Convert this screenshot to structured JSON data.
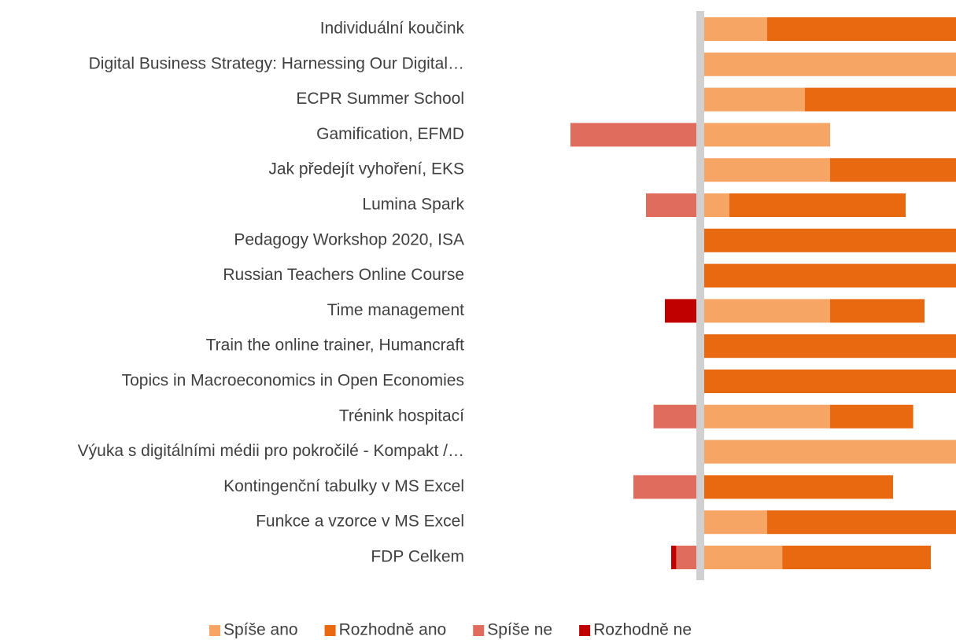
{
  "chart_data": {
    "type": "diverging-bar",
    "categories": [
      "Individuální koučink",
      "Digital Business Strategy: Harnessing Our Digital…",
      "ECPR Summer School",
      "Gamification,  EFMD",
      "Jak předejít vyhoření, EKS",
      "Lumina Spark",
      "Pedagogy Workshop 2020, ISA",
      "Russian Teachers Online Course",
      "Time management",
      "Train the online trainer, Humancraft",
      "Topics in Macroeconomics in Open Economies",
      "Trénink hospitací",
      "Výuka s digitálními médii pro pokročilé - Kompakt /…",
      "Kontingenční tabulky v MS Excel ",
      "Funkce a vzorce v MS Excel",
      "FDP Celkem"
    ],
    "series": [
      {
        "name": "Spíše ano",
        "color": "#f7a565",
        "values": [
          25,
          100,
          40,
          50,
          50,
          10,
          null,
          null,
          50,
          null,
          null,
          50,
          100,
          null,
          25,
          31
        ]
      },
      {
        "name": "Rozhodně ano",
        "color": "#e8690f",
        "values": [
          75,
          null,
          60,
          null,
          50,
          70,
          100,
          100,
          37.5,
          100,
          100,
          33,
          null,
          75,
          75,
          59
        ]
      },
      {
        "name": "Spíše ne",
        "color": "#e06c5e",
        "values": [
          null,
          null,
          null,
          -50,
          null,
          -20,
          null,
          null,
          null,
          null,
          null,
          -17,
          null,
          -25,
          null,
          -8
        ]
      },
      {
        "name": "Rozhodně ne",
        "color": "#c00000",
        "values": [
          null,
          null,
          null,
          null,
          null,
          null,
          null,
          null,
          -12.5,
          null,
          null,
          null,
          null,
          null,
          null,
          -2
        ]
      }
    ],
    "legend": "bottom"
  }
}
